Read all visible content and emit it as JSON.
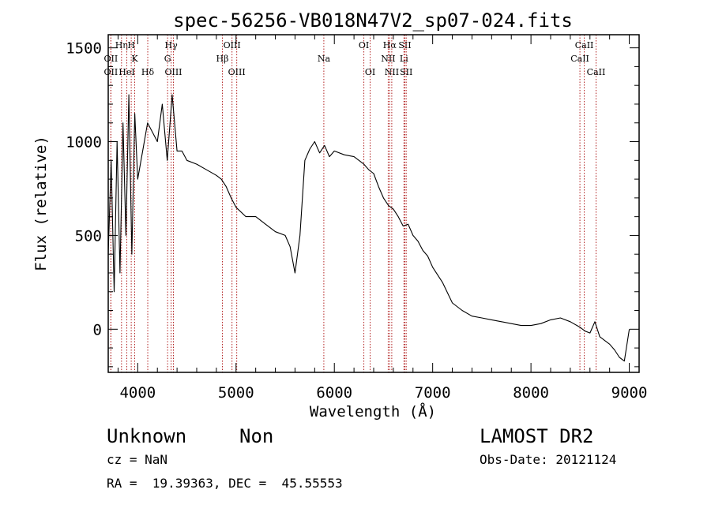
{
  "chart_data": {
    "type": "line",
    "title": "spec-56256-VB018N47V2_sp07-024.fits",
    "xlabel": "Wavelength (Å)",
    "ylabel": "Flux (relative)",
    "xlim": [
      3700,
      9100
    ],
    "ylim": [
      -230,
      1570
    ],
    "xticks": [
      4000,
      5000,
      6000,
      7000,
      8000,
      9000
    ],
    "yticks": [
      0,
      500,
      1000,
      1500
    ],
    "grid": false,
    "legend": "none",
    "line_color": "#000000",
    "marker_color": "#b22222",
    "series": [
      {
        "x": [
          3700,
          3730,
          3760,
          3790,
          3820,
          3850,
          3880,
          3910,
          3940,
          3970,
          4000,
          4050,
          4100,
          4150,
          4200,
          4250,
          4300,
          4350,
          4400,
          4450,
          4500,
          4600,
          4700,
          4800,
          4850,
          4900,
          4950,
          5000,
          5100,
          5200,
          5300,
          5400,
          5500,
          5550,
          5600,
          5650,
          5700,
          5750,
          5800,
          5850,
          5900,
          5950,
          6000,
          6100,
          6200,
          6300,
          6350,
          6400,
          6450,
          6500,
          6550,
          6600,
          6650,
          6700,
          6750,
          6800,
          6850,
          6900,
          6950,
          7000,
          7100,
          7200,
          7300,
          7400,
          7500,
          7600,
          7700,
          7800,
          7900,
          8000,
          8100,
          8200,
          8300,
          8400,
          8500,
          8550,
          8600,
          8650,
          8700,
          8750,
          8800,
          8850,
          8900,
          8950,
          9000
        ],
        "y": [
          400,
          900,
          200,
          1000,
          300,
          1100,
          500,
          1250,
          400,
          1150,
          800,
          950,
          1100,
          1050,
          1000,
          1200,
          900,
          1250,
          950,
          950,
          900,
          880,
          850,
          820,
          800,
          760,
          700,
          650,
          600,
          600,
          560,
          520,
          500,
          440,
          300,
          500,
          900,
          960,
          1000,
          940,
          980,
          920,
          950,
          930,
          920,
          880,
          850,
          830,
          760,
          700,
          660,
          640,
          600,
          550,
          560,
          500,
          470,
          420,
          390,
          330,
          250,
          140,
          100,
          70,
          60,
          50,
          40,
          30,
          20,
          20,
          30,
          50,
          60,
          40,
          10,
          -10,
          -20,
          40,
          -40,
          -60,
          -80,
          -110,
          -150,
          -170,
          0
        ]
      }
    ],
    "line_markers": [
      {
        "label": "OII",
        "x": 3727,
        "row": 3
      },
      {
        "label": "OII",
        "x": 3727,
        "row": 2
      },
      {
        "label": "Hη",
        "x": 3835,
        "row": 1
      },
      {
        "label": "HeI",
        "x": 3889,
        "row": 3
      },
      {
        "label": "H",
        "x": 3934,
        "row": 1
      },
      {
        "label": "K",
        "x": 3969,
        "row": 2
      },
      {
        "label": "Hδ",
        "x": 4102,
        "row": 3
      },
      {
        "label": "Hγ",
        "x": 4340,
        "row": 1
      },
      {
        "label": "G",
        "x": 4304,
        "row": 2
      },
      {
        "label": "OIII",
        "x": 4363,
        "row": 3
      },
      {
        "label": "Hβ",
        "x": 4861,
        "row": 2
      },
      {
        "label": "OIII",
        "x": 4959,
        "row": 1
      },
      {
        "label": "OIII",
        "x": 5007,
        "row": 3
      },
      {
        "label": "Na",
        "x": 5893,
        "row": 2
      },
      {
        "label": "OI",
        "x": 6300,
        "row": 1
      },
      {
        "label": "OI",
        "x": 6364,
        "row": 3
      },
      {
        "label": "Hα",
        "x": 6563,
        "row": 1
      },
      {
        "label": "NII",
        "x": 6548,
        "row": 2
      },
      {
        "label": "NII",
        "x": 6584,
        "row": 3
      },
      {
        "label": "SII",
        "x": 6717,
        "row": 1
      },
      {
        "label": "Li",
        "x": 6708,
        "row": 2
      },
      {
        "label": "SII",
        "x": 6731,
        "row": 3
      },
      {
        "label": "CaII",
        "x": 8542,
        "row": 1
      },
      {
        "label": "CaII",
        "x": 8498,
        "row": 2
      },
      {
        "label": "CaII",
        "x": 8662,
        "row": 3
      }
    ]
  },
  "info": {
    "class_label": "Unknown",
    "subclass_label": "Non",
    "survey": "LAMOST DR2",
    "cz": "cz = NaN",
    "obs_date": "Obs-Date: 20121124",
    "coords": "RA =  19.39363, DEC =  45.55553"
  }
}
